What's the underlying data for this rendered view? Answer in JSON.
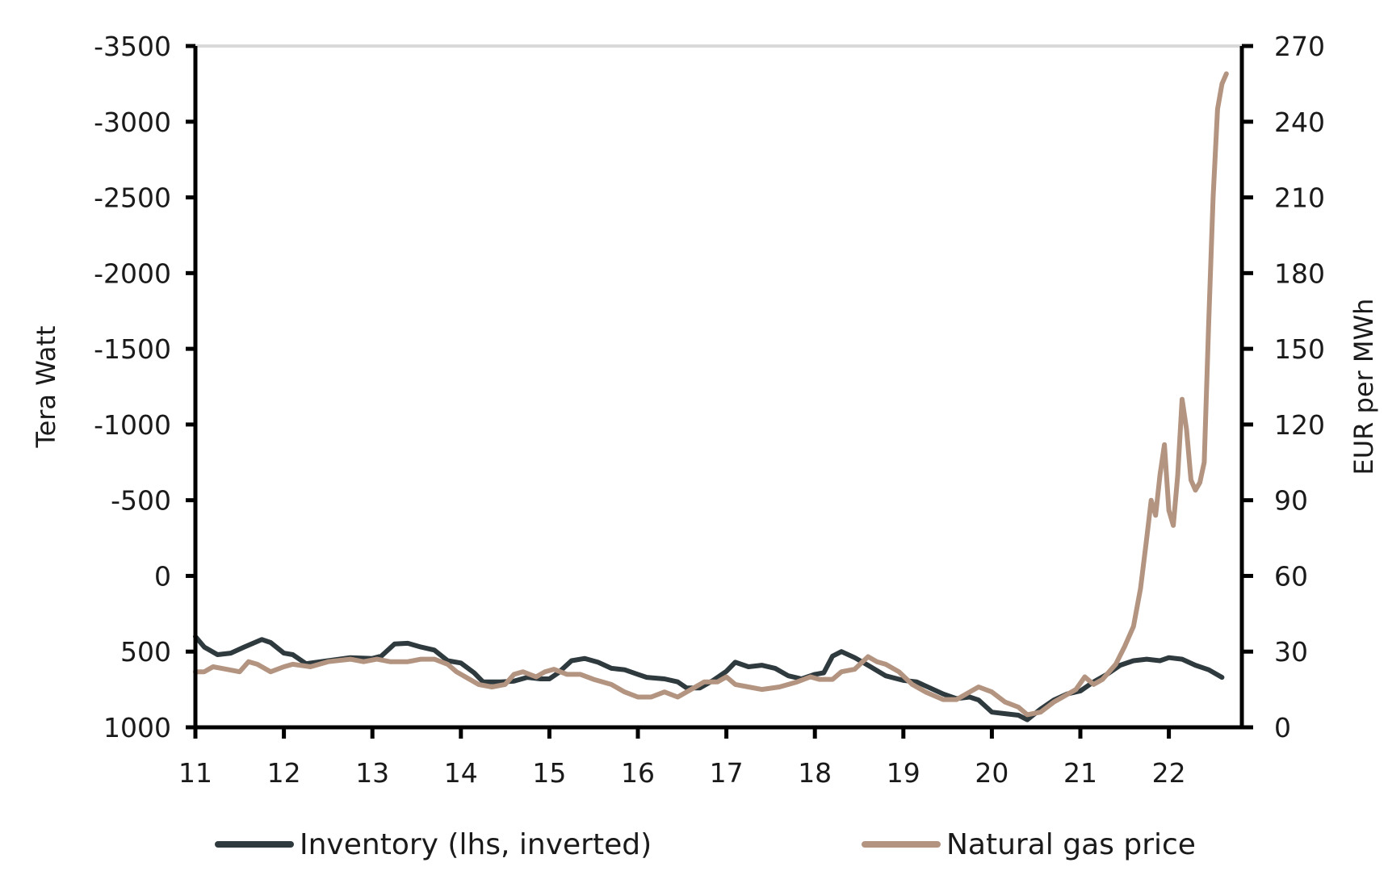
{
  "chart_data": {
    "type": "line",
    "title": "",
    "xlabel": "",
    "x_ticks": [
      "11",
      "12",
      "13",
      "14",
      "15",
      "16",
      "17",
      "18",
      "19",
      "20",
      "21",
      "22"
    ],
    "x_range": [
      11,
      23
    ],
    "left_axis": {
      "label": "Tera Watt",
      "inverted": true,
      "range": [
        -3500,
        1000
      ],
      "ticks": [
        -3500,
        -3000,
        -2500,
        -2000,
        -1500,
        -1000,
        -500,
        0,
        500,
        1000
      ]
    },
    "right_axis": {
      "label": "EUR per MWh",
      "range": [
        0,
        270
      ],
      "ticks": [
        0,
        30,
        60,
        90,
        120,
        150,
        180,
        210,
        240,
        270
      ]
    },
    "grid": false,
    "legend_position": "bottom",
    "series": [
      {
        "name": "Inventory (lhs, inverted)",
        "axis": "left",
        "color": "#2f3a3e",
        "x": [
          11.0,
          11.1,
          11.25,
          11.4,
          11.55,
          11.75,
          11.85,
          12.0,
          12.1,
          12.25,
          12.5,
          12.75,
          13.0,
          13.1,
          13.25,
          13.4,
          13.55,
          13.7,
          13.85,
          14.0,
          14.15,
          14.25,
          14.45,
          14.6,
          14.75,
          14.9,
          15.0,
          15.1,
          15.25,
          15.4,
          15.55,
          15.7,
          15.85,
          16.0,
          16.1,
          16.3,
          16.45,
          16.55,
          16.7,
          16.85,
          17.0,
          17.1,
          17.25,
          17.4,
          17.55,
          17.7,
          17.85,
          18.0,
          18.1,
          18.2,
          18.3,
          18.45,
          18.6,
          18.8,
          19.0,
          19.15,
          19.3,
          19.45,
          19.6,
          19.75,
          19.85,
          20.0,
          20.15,
          20.3,
          20.4,
          20.55,
          20.7,
          20.85,
          21.0,
          21.15,
          21.3,
          21.45,
          21.6,
          21.75,
          21.9,
          22.0,
          22.15,
          22.3,
          22.45,
          22.6
        ],
        "values": [
          400,
          470,
          520,
          510,
          470,
          420,
          440,
          510,
          520,
          580,
          560,
          540,
          545,
          530,
          450,
          445,
          470,
          490,
          560,
          575,
          640,
          700,
          700,
          695,
          670,
          680,
          680,
          640,
          560,
          545,
          570,
          610,
          620,
          650,
          670,
          680,
          700,
          740,
          740,
          690,
          630,
          570,
          600,
          590,
          610,
          660,
          680,
          650,
          640,
          530,
          500,
          540,
          590,
          660,
          690,
          700,
          740,
          780,
          810,
          800,
          820,
          900,
          910,
          920,
          950,
          880,
          820,
          780,
          760,
          700,
          650,
          590,
          560,
          550,
          560,
          540,
          550,
          590,
          620,
          670
        ]
      },
      {
        "name": "Natural gas price",
        "axis": "right",
        "color": "#b39480",
        "x": [
          11.0,
          11.1,
          11.2,
          11.35,
          11.5,
          11.6,
          11.7,
          11.85,
          12.0,
          12.1,
          12.3,
          12.5,
          12.75,
          12.9,
          13.05,
          13.2,
          13.4,
          13.55,
          13.7,
          13.85,
          13.95,
          14.05,
          14.2,
          14.35,
          14.5,
          14.6,
          14.7,
          14.85,
          14.95,
          15.05,
          15.2,
          15.35,
          15.5,
          15.7,
          15.85,
          16.0,
          16.15,
          16.3,
          16.45,
          16.6,
          16.75,
          16.9,
          17.0,
          17.1,
          17.25,
          17.4,
          17.6,
          17.8,
          17.95,
          18.05,
          18.2,
          18.3,
          18.45,
          18.6,
          18.7,
          18.8,
          18.95,
          19.1,
          19.25,
          19.45,
          19.6,
          19.75,
          19.85,
          20.0,
          20.15,
          20.3,
          20.4,
          20.55,
          20.7,
          20.85,
          20.95,
          21.05,
          21.15,
          21.25,
          21.4,
          21.5,
          21.6,
          21.68,
          21.75,
          21.8,
          21.85,
          21.9,
          21.95,
          22.0,
          22.05,
          22.1,
          22.15,
          22.2,
          22.25,
          22.3,
          22.35,
          22.4,
          22.45,
          22.5,
          22.55,
          22.6,
          22.65
        ],
        "values": [
          22,
          22,
          24,
          23,
          22,
          26,
          25,
          22,
          24,
          25,
          24,
          26,
          27,
          26,
          27,
          26,
          26,
          27,
          27,
          25,
          22,
          20,
          17,
          16,
          17,
          21,
          22,
          20,
          22,
          23,
          21,
          21,
          19,
          17,
          14,
          12,
          12,
          14,
          12,
          15,
          18,
          18,
          20,
          17,
          16,
          15,
          16,
          18,
          20,
          19,
          19,
          22,
          23,
          28,
          26,
          25,
          22,
          17,
          14,
          11,
          11,
          14,
          16,
          14,
          10,
          8,
          5,
          6,
          10,
          13,
          15,
          20,
          17,
          19,
          25,
          32,
          40,
          55,
          75,
          90,
          84,
          100,
          112,
          86,
          80,
          100,
          130,
          118,
          98,
          94,
          97,
          105,
          160,
          210,
          245,
          255,
          259
        ]
      }
    ],
    "legend": [
      {
        "label": "Inventory (lhs, inverted)",
        "color": "#2f3a3e"
      },
      {
        "label": "Natural gas price",
        "color": "#b39480"
      }
    ]
  },
  "colors": {
    "axis": "#000000",
    "top_border": "#d9d9d9",
    "text": "#1a1a1a"
  }
}
